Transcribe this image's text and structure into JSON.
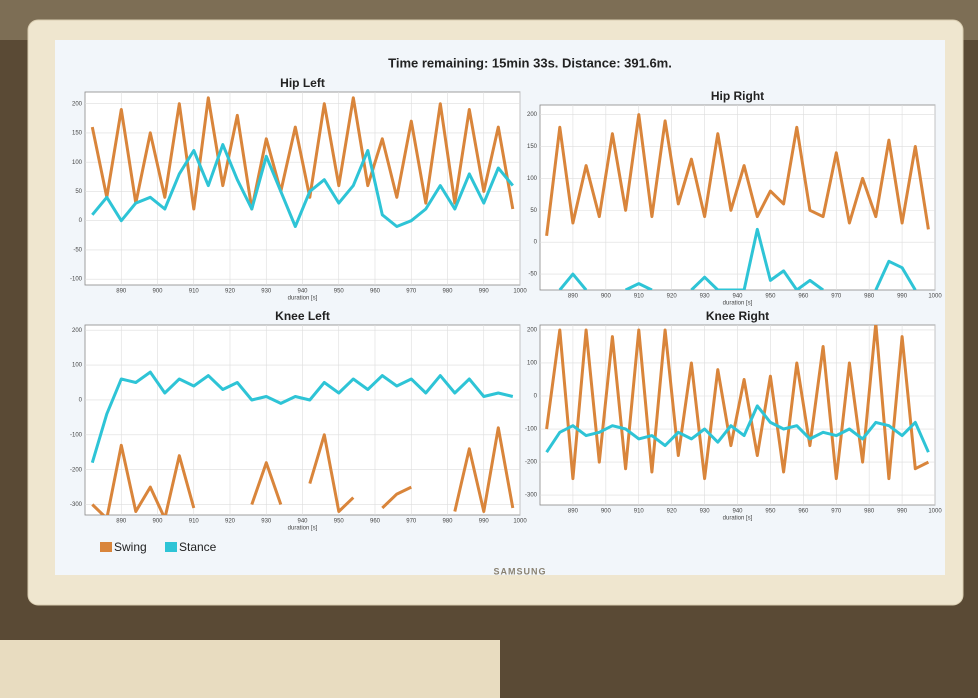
{
  "header": {
    "title": "Time remaining: 15min 33s. Distance: 391.6m.",
    "brand": "SAMSUNG"
  },
  "chart_data": [
    {
      "type": "line",
      "title": "Hip Left",
      "xlabel": "duration [s]",
      "grid": true,
      "x": [
        882,
        886,
        890,
        894,
        898,
        902,
        906,
        910,
        914,
        918,
        922,
        926,
        930,
        934,
        938,
        942,
        946,
        950,
        954,
        958,
        962,
        966,
        970,
        974,
        978,
        982,
        986,
        990,
        994,
        998
      ],
      "xlim": [
        880,
        1000
      ],
      "xticks": [
        890,
        900,
        910,
        920,
        930,
        940,
        950,
        960,
        970,
        980,
        990,
        1000
      ],
      "ylim": [
        -110,
        220
      ],
      "yticks": [
        200,
        150,
        100,
        50,
        0,
        -50,
        -100
      ],
      "series": [
        {
          "name": "Swing",
          "color": "#d9853b",
          "values": [
            160,
            40,
            190,
            30,
            150,
            40,
            200,
            20,
            210,
            60,
            180,
            20,
            140,
            50,
            160,
            40,
            200,
            60,
            210,
            60,
            140,
            40,
            170,
            30,
            200,
            30,
            190,
            50,
            160,
            20
          ]
        },
        {
          "name": "Stance",
          "color": "#2ec4d6",
          "values": [
            10,
            40,
            0,
            30,
            40,
            20,
            80,
            120,
            60,
            130,
            70,
            20,
            110,
            50,
            -10,
            50,
            70,
            30,
            60,
            120,
            10,
            -10,
            0,
            20,
            60,
            20,
            80,
            30,
            90,
            60
          ]
        }
      ]
    },
    {
      "type": "line",
      "title": "Hip Right",
      "xlabel": "duration [s]",
      "grid": true,
      "x": [
        882,
        886,
        890,
        894,
        898,
        902,
        906,
        910,
        914,
        918,
        922,
        926,
        930,
        934,
        938,
        942,
        946,
        950,
        954,
        958,
        962,
        966,
        970,
        974,
        978,
        982,
        986,
        990,
        994,
        998
      ],
      "xlim": [
        880,
        1000
      ],
      "xticks": [
        890,
        900,
        910,
        920,
        930,
        940,
        950,
        960,
        970,
        980,
        990,
        1000
      ],
      "ylim": [
        -75,
        215
      ],
      "yticks": [
        200,
        150,
        100,
        50,
        0,
        -50
      ],
      "series": [
        {
          "name": "Swing",
          "color": "#d9853b",
          "values": [
            10,
            180,
            30,
            120,
            40,
            170,
            50,
            200,
            40,
            190,
            60,
            130,
            40,
            170,
            50,
            120,
            40,
            80,
            60,
            180,
            50,
            40,
            140,
            30,
            100,
            40,
            160,
            30,
            150,
            20
          ]
        },
        {
          "name": "Stance",
          "color": "#2ec4d6",
          "values": [
            null,
            -75,
            -50,
            -75,
            null,
            null,
            -75,
            -65,
            -75,
            null,
            null,
            -75,
            -55,
            -75,
            -75,
            -75,
            20,
            -60,
            -45,
            -75,
            -60,
            -75,
            null,
            null,
            null,
            -75,
            -30,
            -40,
            -75,
            null
          ]
        }
      ]
    },
    {
      "type": "line",
      "title": "Knee Left",
      "xlabel": "duration [s]",
      "grid": true,
      "x": [
        882,
        886,
        890,
        894,
        898,
        902,
        906,
        910,
        914,
        918,
        922,
        926,
        930,
        934,
        938,
        942,
        946,
        950,
        954,
        958,
        962,
        966,
        970,
        974,
        978,
        982,
        986,
        990,
        994,
        998
      ],
      "xlim": [
        880,
        1000
      ],
      "xticks": [
        890,
        900,
        910,
        920,
        930,
        940,
        950,
        960,
        970,
        980,
        990,
        1000
      ],
      "ylim": [
        -330,
        215
      ],
      "yticks": [
        200,
        100,
        0,
        -100,
        -200,
        -300
      ],
      "series": [
        {
          "name": "Swing",
          "color": "#d9853b",
          "values": [
            -300,
            -340,
            -130,
            -320,
            -250,
            -340,
            -160,
            -310,
            null,
            null,
            null,
            -300,
            -180,
            -300,
            null,
            -240,
            -100,
            -320,
            -280,
            null,
            -310,
            -270,
            -250,
            null,
            null,
            -320,
            -140,
            -320,
            -80,
            -310
          ]
        },
        {
          "name": "Stance",
          "color": "#2ec4d6",
          "values": [
            -180,
            -40,
            60,
            50,
            80,
            20,
            60,
            40,
            70,
            30,
            50,
            0,
            10,
            -10,
            10,
            0,
            50,
            20,
            60,
            30,
            70,
            40,
            60,
            20,
            70,
            20,
            60,
            10,
            20,
            10
          ]
        }
      ]
    },
    {
      "type": "line",
      "title": "Knee Right",
      "xlabel": "duration [s]",
      "grid": true,
      "x": [
        882,
        886,
        890,
        894,
        898,
        902,
        906,
        910,
        914,
        918,
        922,
        926,
        930,
        934,
        938,
        942,
        946,
        950,
        954,
        958,
        962,
        966,
        970,
        974,
        978,
        982,
        986,
        990,
        994,
        998
      ],
      "xlim": [
        880,
        1000
      ],
      "xticks": [
        890,
        900,
        910,
        920,
        930,
        940,
        950,
        960,
        970,
        980,
        990,
        1000
      ],
      "ylim": [
        -330,
        215
      ],
      "yticks": [
        200,
        100,
        0,
        -100,
        -200,
        -300
      ],
      "series": [
        {
          "name": "Swing",
          "color": "#d9853b",
          "values": [
            -100,
            200,
            -250,
            200,
            -200,
            180,
            -220,
            200,
            -230,
            200,
            -180,
            100,
            -250,
            80,
            -150,
            50,
            -180,
            60,
            -230,
            100,
            -150,
            150,
            -250,
            100,
            -200,
            220,
            -250,
            180,
            -220,
            -200
          ]
        },
        {
          "name": "Stance",
          "color": "#2ec4d6",
          "values": [
            -170,
            -110,
            -90,
            -120,
            -110,
            -90,
            -100,
            -130,
            -120,
            -150,
            -110,
            -130,
            -100,
            -140,
            -90,
            -120,
            -30,
            -80,
            -100,
            -90,
            -130,
            -110,
            -120,
            -100,
            -130,
            -80,
            -90,
            -120,
            -80,
            -170
          ]
        }
      ]
    }
  ]
}
